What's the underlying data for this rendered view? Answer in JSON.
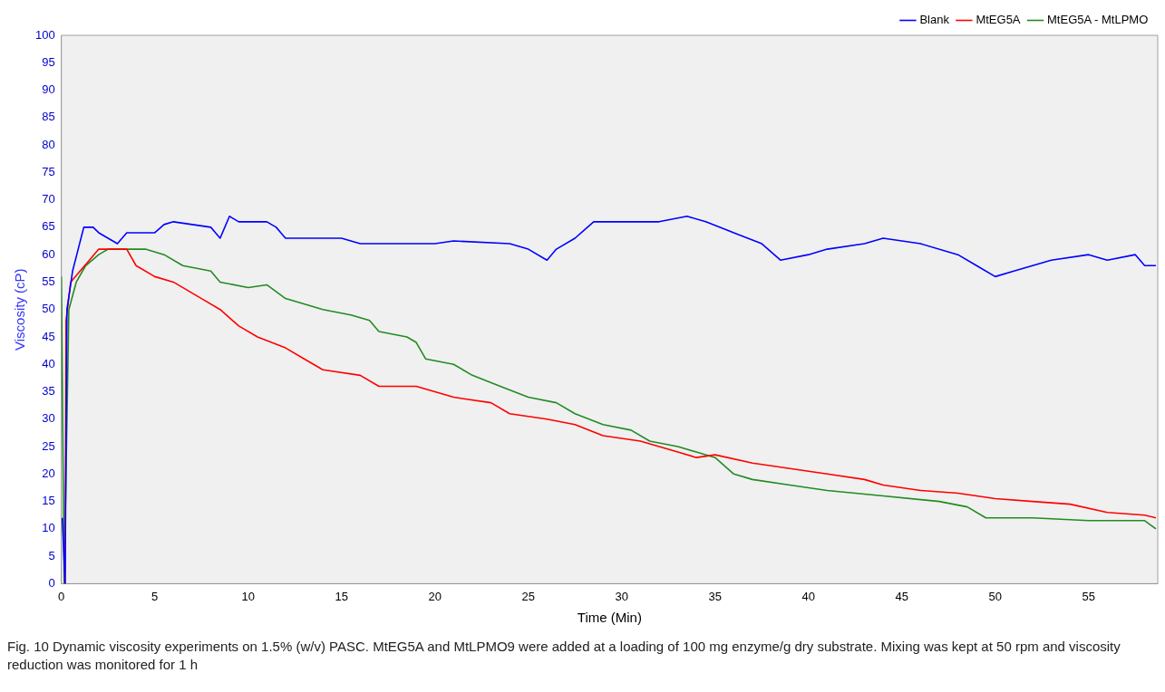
{
  "chart_data": {
    "type": "line",
    "xlabel": "Time (Min)",
    "ylabel": "Viscosity (cP)",
    "xlim": [
      0,
      58.7
    ],
    "xticks": [
      0,
      5,
      10,
      15,
      20,
      25,
      30,
      35,
      40,
      45,
      50,
      55
    ],
    "ylim": [
      0,
      100
    ],
    "yticks": [
      0,
      5,
      10,
      15,
      20,
      25,
      30,
      35,
      40,
      45,
      50,
      55,
      60,
      65,
      70,
      75,
      80,
      85,
      90,
      95,
      100
    ],
    "grid": false,
    "legend": "top right",
    "marker": "none",
    "line_style": "solid",
    "annotations": [
      "Fig. 10  Dynamic viscosity experiments on 1.5% (w/v) PASC. MtEG5A and MtLPMO9 were added at a loading of 100 mg enzyme/g dry substrate. Mixing was kept at 50 rpm and viscosity reduction was monitored for 1 h"
    ],
    "series": [
      {
        "name": "Blank",
        "color": "#0000ff",
        "x": [
          0.05,
          0.2,
          0.3,
          0.6,
          0.9,
          1.2,
          1.7,
          2,
          3,
          3.5,
          5,
          5.5,
          6,
          8,
          8.5,
          9,
          9.5,
          11,
          11.5,
          12,
          15,
          16,
          20,
          21,
          24,
          25,
          26,
          26.5,
          27.5,
          28.5,
          32,
          33.5,
          34.5,
          36,
          37.5,
          38.5,
          40,
          41,
          43,
          44,
          46,
          48,
          49,
          50,
          51,
          52,
          53,
          55,
          56,
          57.5,
          58,
          58.6
        ],
        "values": [
          12,
          0,
          50,
          57,
          61,
          65,
          65,
          64,
          62,
          64,
          64,
          65.5,
          66,
          65,
          63,
          67,
          66,
          66,
          65,
          63,
          63,
          62,
          62,
          62.5,
          62,
          61,
          59,
          61,
          63,
          66,
          66,
          67,
          66,
          64,
          62,
          59,
          60,
          61,
          62,
          63,
          62,
          60,
          58,
          56,
          57,
          58,
          59,
          60,
          59,
          60,
          58,
          58
        ]
      },
      {
        "name": "MtEG5A",
        "color": "#ff0000",
        "x": [
          0.2,
          0.25,
          0.5,
          1,
          1.5,
          2,
          3.5,
          4,
          5,
          6,
          7.5,
          8.5,
          9.5,
          10.5,
          12,
          13,
          14,
          16,
          17,
          19,
          20,
          21,
          23,
          24,
          26,
          27.5,
          29,
          31,
          33,
          34,
          35,
          37,
          39,
          41,
          43,
          44,
          46,
          48,
          49,
          50,
          52,
          54,
          56,
          58,
          58.6
        ],
        "values": [
          0,
          48,
          55,
          57,
          59,
          61,
          61,
          58,
          56,
          55,
          52,
          50,
          47,
          45,
          43,
          41,
          39,
          38,
          36,
          36,
          35,
          34,
          33,
          31,
          30,
          29,
          27,
          26,
          24,
          23,
          23.5,
          22,
          21,
          20,
          19,
          18,
          17,
          16.5,
          16,
          15.5,
          15,
          14.5,
          13,
          12.5,
          12
        ]
      },
      {
        "name": "MtEG5A - MtLPMO",
        "color": "#228b22",
        "x": [
          0,
          0.15,
          0.4,
          0.8,
          1.3,
          2,
          2.5,
          4.5,
          5.5,
          6.5,
          8,
          8.5,
          10,
          11,
          12,
          14,
          15.5,
          16.5,
          17,
          18.5,
          19,
          19.5,
          21,
          22,
          23.5,
          25,
          26.5,
          27.5,
          29,
          30.5,
          31.5,
          33,
          34,
          35,
          36,
          37,
          39,
          41,
          44,
          47,
          48.5,
          49.5,
          52,
          55,
          58,
          58.6
        ],
        "values": [
          56,
          0,
          50,
          55,
          58,
          60,
          61,
          61,
          60,
          58,
          57,
          55,
          54,
          54.5,
          52,
          50,
          49,
          48,
          46,
          45,
          44,
          41,
          40,
          38,
          36,
          34,
          33,
          31,
          29,
          28,
          26,
          25,
          24,
          23,
          20,
          19,
          18,
          17,
          16,
          15,
          14,
          12,
          12,
          11.5,
          11.5,
          10
        ]
      }
    ]
  }
}
